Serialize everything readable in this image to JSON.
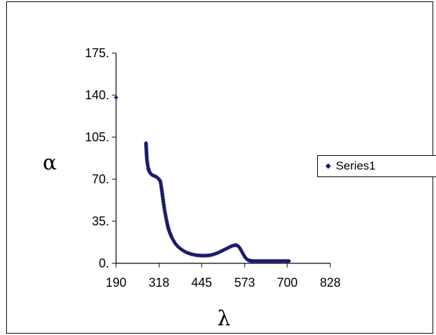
{
  "chart_data": {
    "type": "scatter",
    "xlabel": "λ",
    "ylabel": "α",
    "xlim": [
      190,
      828
    ],
    "ylim": [
      0,
      175
    ],
    "x_ticks": [
      "190",
      "318",
      "445",
      "573",
      "700",
      "828"
    ],
    "x_tick_values": [
      190,
      318,
      445,
      573,
      700,
      828
    ],
    "y_ticks": [
      "0.",
      "35.",
      "70.",
      "105.",
      "140.",
      "175."
    ],
    "y_tick_values": [
      0,
      35,
      70,
      105,
      140,
      175
    ],
    "grid": false,
    "legend": "right",
    "marker_color": "#1a1a6e",
    "series": [
      {
        "name": "Series1",
        "x": [
          190,
          279,
          280,
          281,
          282,
          284,
          286,
          288,
          290,
          292,
          295,
          298,
          302,
          306,
          310,
          314,
          318,
          322,
          324,
          326,
          328,
          330,
          332,
          334,
          336,
          338,
          340,
          342,
          344,
          346,
          348,
          350,
          353,
          356,
          359,
          362,
          365,
          368,
          372,
          376,
          380,
          385,
          390,
          395,
          400,
          405,
          410,
          415,
          420,
          425,
          430,
          435,
          440,
          445,
          450,
          455,
          460,
          465,
          470,
          475,
          480,
          485,
          490,
          495,
          500,
          505,
          510,
          515,
          520,
          525,
          530,
          535,
          540,
          545,
          548,
          551,
          554,
          557,
          560,
          563,
          566,
          569,
          572,
          575,
          578,
          581,
          584,
          587,
          590,
          593,
          596,
          600,
          605,
          610,
          615,
          620,
          630,
          640,
          650,
          660,
          670,
          680,
          690,
          700,
          705
        ],
        "y": [
          138,
          100,
          95,
          90,
          86,
          82,
          79,
          77,
          76,
          75,
          74,
          73.5,
          73,
          72.5,
          72,
          71,
          70,
          68,
          65,
          61,
          57,
          53,
          49,
          45,
          42,
          39,
          36,
          33.5,
          31,
          29,
          27,
          25.5,
          23.5,
          21.5,
          20,
          18.5,
          17,
          16,
          14.5,
          13.5,
          12.5,
          11.5,
          10.5,
          9.8,
          9,
          8.5,
          8,
          7.6,
          7.3,
          7,
          6.8,
          6.6,
          6.5,
          6.4,
          6.4,
          6.4,
          6.5,
          6.6,
          6.8,
          7,
          7.4,
          7.9,
          8.4,
          9,
          9.6,
          10.3,
          11,
          11.7,
          12.4,
          13.1,
          13.8,
          14.4,
          14.9,
          15.1,
          15.1,
          14.8,
          14.2,
          13.2,
          12,
          10.5,
          9,
          7.5,
          6,
          4.8,
          3.8,
          3.1,
          2.6,
          2.3,
          2.1,
          2,
          1.9,
          1.9,
          1.9,
          1.9,
          1.9,
          1.9,
          1.9,
          1.9,
          1.9,
          1.9,
          1.9,
          1.9,
          1.9,
          1.9,
          1.9
        ]
      }
    ]
  }
}
